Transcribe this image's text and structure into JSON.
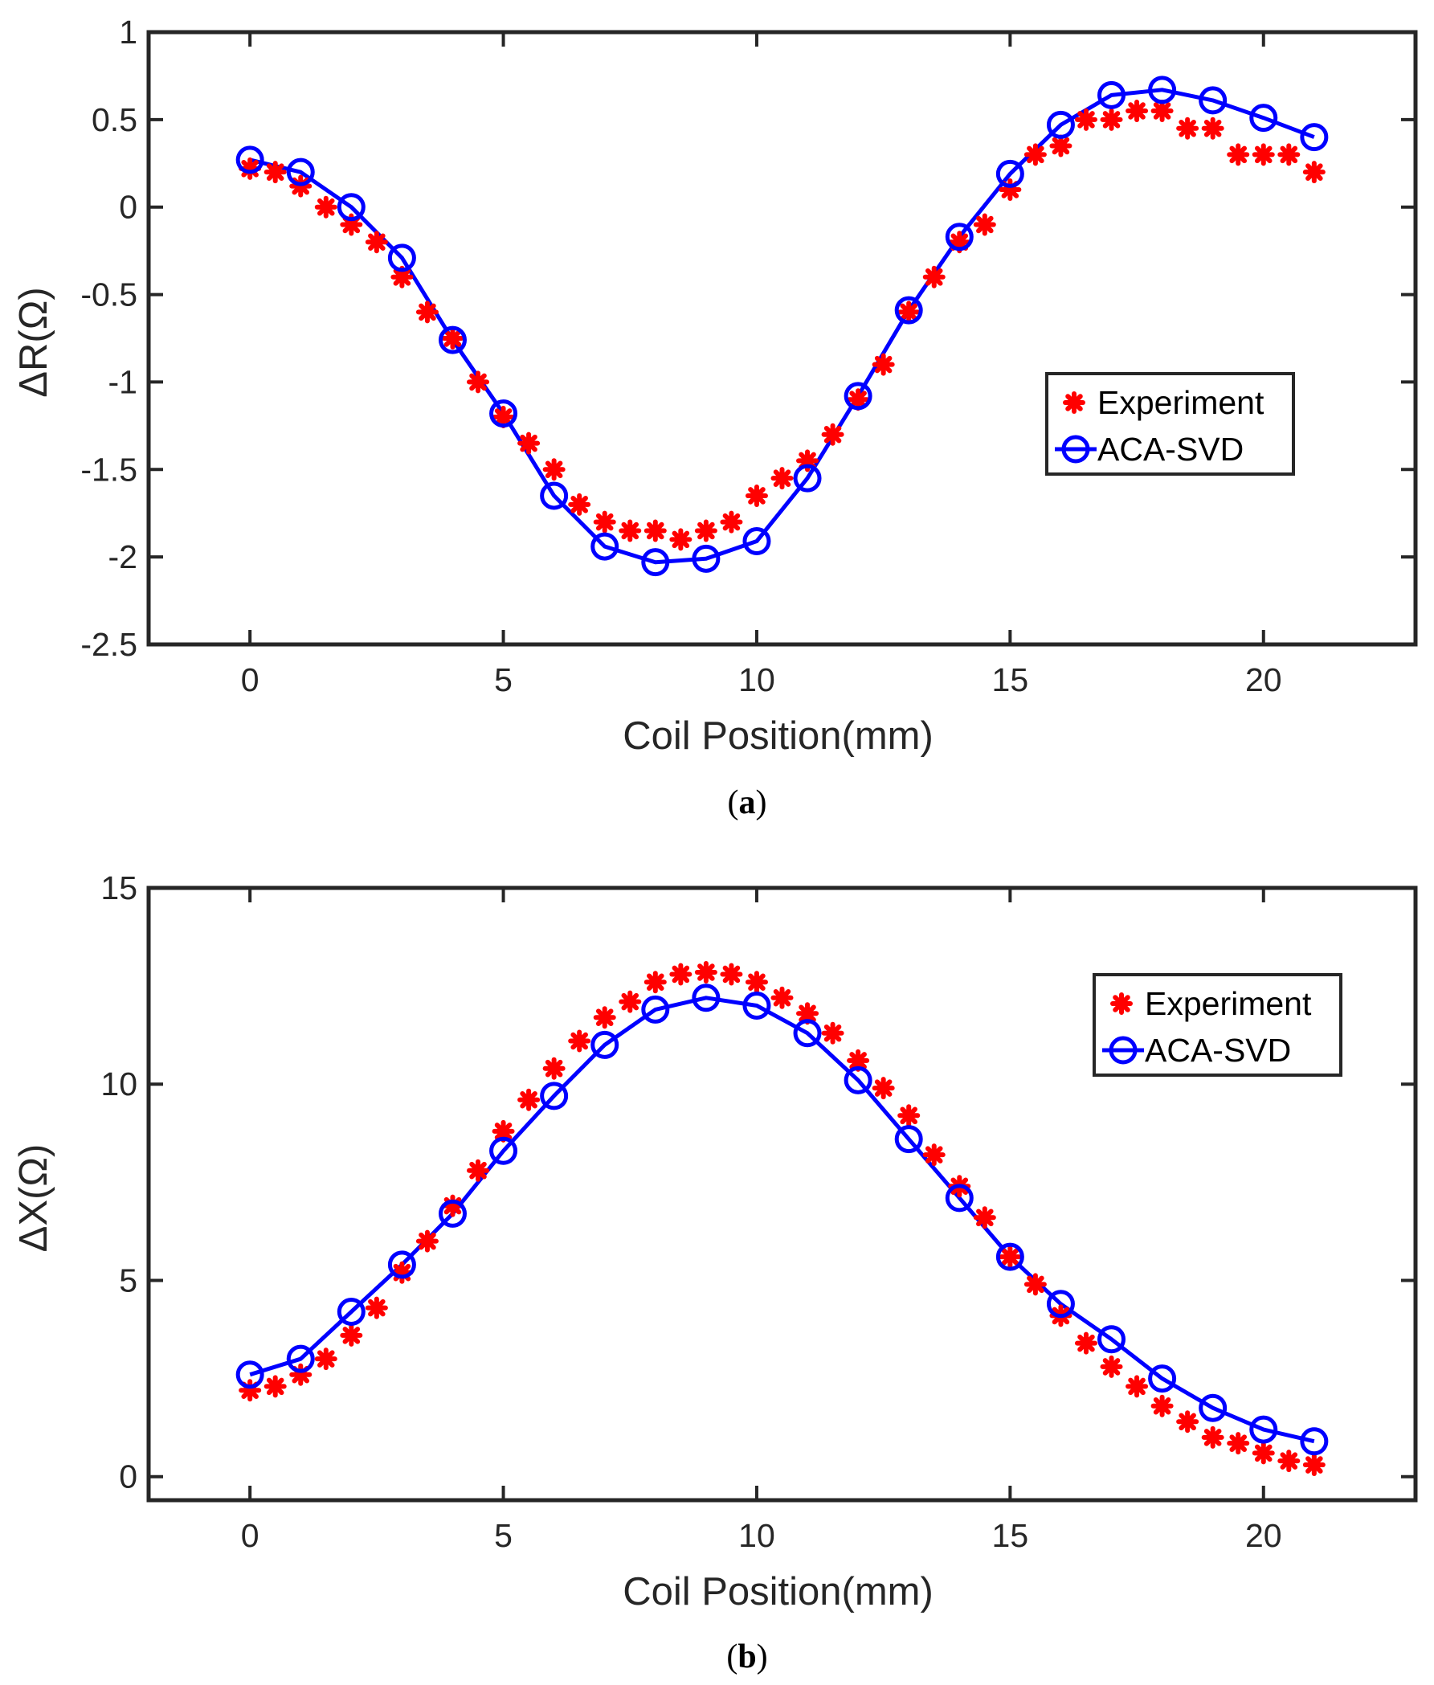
{
  "chart_data": [
    {
      "type": "line",
      "panel_caption_open": "(",
      "panel_caption_letter": "a",
      "panel_caption_close": ")",
      "xlabel": "Coil Position(mm)",
      "ylabel": "ΔR(Ω)",
      "xlim": [
        -2,
        23
      ],
      "ylim": [
        -2.5,
        1
      ],
      "xticks": [
        0,
        5,
        10,
        15,
        20
      ],
      "yticks": [
        -2.5,
        -2,
        -1.5,
        -1,
        -0.5,
        0,
        0.5,
        1
      ],
      "ytick_labels": [
        "-2.5",
        "-2",
        "-1.5",
        "-1",
        "-0.5",
        "0",
        "0.5",
        "1"
      ],
      "xtick_labels": [
        "0",
        "5",
        "10",
        "15",
        "20"
      ],
      "legend_position": "right-middle",
      "series": [
        {
          "name": "Experiment",
          "style": "red-asterisk",
          "color": "#ff0000",
          "x": [
            0,
            0.5,
            1,
            1.5,
            2,
            2.5,
            3,
            3.5,
            4,
            4.5,
            5,
            5.5,
            6,
            6.5,
            7,
            7.5,
            8,
            8.5,
            9,
            9.5,
            10,
            10.5,
            11,
            11.5,
            12,
            12.5,
            13,
            13.5,
            14,
            14.5,
            15,
            15.5,
            16,
            16.5,
            17,
            17.5,
            18,
            18.5,
            19,
            19.5,
            20,
            20.5,
            21
          ],
          "y": [
            0.22,
            0.2,
            0.12,
            0.0,
            -0.1,
            -0.2,
            -0.4,
            -0.6,
            -0.75,
            -1.0,
            -1.2,
            -1.35,
            -1.5,
            -1.7,
            -1.8,
            -1.85,
            -1.85,
            -1.9,
            -1.85,
            -1.8,
            -1.65,
            -1.55,
            -1.45,
            -1.3,
            -1.1,
            -0.9,
            -0.6,
            -0.4,
            -0.2,
            -0.1,
            0.1,
            0.3,
            0.35,
            0.5,
            0.5,
            0.55,
            0.55,
            0.45,
            0.45,
            0.3,
            0.3,
            0.3,
            0.2
          ]
        },
        {
          "name": "ACA-SVD",
          "style": "blue-line-circle",
          "color": "#0000ff",
          "x": [
            0,
            1,
            2,
            3,
            4,
            5,
            6,
            7,
            8,
            9,
            10,
            11,
            12,
            13,
            14,
            15,
            16,
            17,
            18,
            19,
            20,
            21
          ],
          "y": [
            0.27,
            0.2,
            0.0,
            -0.29,
            -0.76,
            -1.18,
            -1.65,
            -1.94,
            -2.03,
            -2.01,
            -1.91,
            -1.55,
            -1.08,
            -0.59,
            -0.17,
            0.19,
            0.47,
            0.64,
            0.67,
            0.61,
            0.51,
            0.4
          ]
        }
      ]
    },
    {
      "type": "line",
      "panel_caption_open": "(",
      "panel_caption_letter": "b",
      "panel_caption_close": ")",
      "xlabel": "Coil Position(mm)",
      "ylabel": "ΔX(Ω)",
      "xlim": [
        -2,
        23
      ],
      "ylim": [
        -0.6,
        15
      ],
      "xticks": [
        0,
        5,
        10,
        15,
        20
      ],
      "yticks": [
        0,
        5,
        10,
        15
      ],
      "ytick_labels": [
        "0",
        "5",
        "10",
        "15"
      ],
      "xtick_labels": [
        "0",
        "5",
        "10",
        "15",
        "20"
      ],
      "legend_position": "top-right",
      "series": [
        {
          "name": "Experiment",
          "style": "red-asterisk",
          "color": "#ff0000",
          "x": [
            0,
            0.5,
            1,
            1.5,
            2,
            2.5,
            3,
            3.5,
            4,
            4.5,
            5,
            5.5,
            6,
            6.5,
            7,
            7.5,
            8,
            8.5,
            9,
            9.5,
            10,
            10.5,
            11,
            11.5,
            12,
            12.5,
            13,
            13.5,
            14,
            14.5,
            15,
            15.5,
            16,
            16.5,
            17,
            17.5,
            18,
            18.5,
            19,
            19.5,
            20,
            20.5,
            21
          ],
          "y": [
            2.2,
            2.3,
            2.6,
            3.0,
            3.6,
            4.3,
            5.2,
            6.0,
            6.9,
            7.8,
            8.8,
            9.6,
            10.4,
            11.1,
            11.7,
            12.1,
            12.6,
            12.8,
            12.85,
            12.8,
            12.6,
            12.2,
            11.8,
            11.3,
            10.6,
            9.9,
            9.2,
            8.2,
            7.4,
            6.6,
            5.6,
            4.9,
            4.1,
            3.4,
            2.8,
            2.3,
            1.8,
            1.4,
            1.0,
            0.85,
            0.6,
            0.4,
            0.3
          ]
        },
        {
          "name": "ACA-SVD",
          "style": "blue-line-circle",
          "color": "#0000ff",
          "x": [
            0,
            1,
            2,
            3,
            4,
            5,
            6,
            7,
            8,
            9,
            10,
            11,
            12,
            13,
            14,
            15,
            16,
            17,
            18,
            19,
            20,
            21
          ],
          "y": [
            2.6,
            3.0,
            4.2,
            5.4,
            6.7,
            8.3,
            9.7,
            11.0,
            11.9,
            12.2,
            12.0,
            11.3,
            10.1,
            8.6,
            7.1,
            5.6,
            4.4,
            3.5,
            2.5,
            1.75,
            1.2,
            0.9
          ]
        }
      ]
    }
  ]
}
